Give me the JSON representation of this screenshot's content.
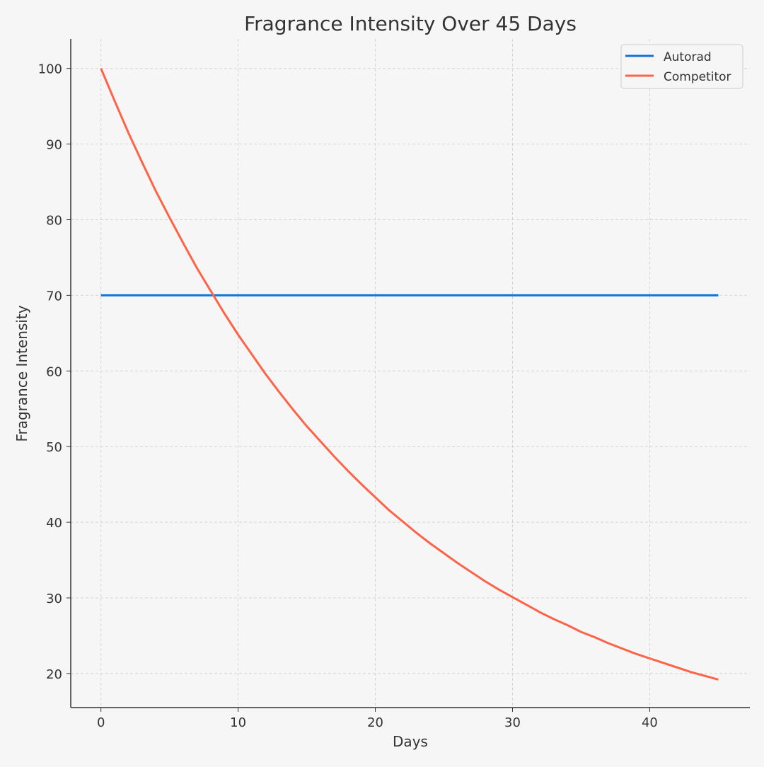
{
  "chart_data": {
    "type": "line",
    "title": "Fragrance Intensity Over 45 Days",
    "xlabel": "Days",
    "ylabel": "Fragrance Intensity",
    "xlim": [
      -2.2,
      47.3
    ],
    "ylim": [
      15.5,
      103.9
    ],
    "xticks": [
      0,
      10,
      20,
      30,
      40
    ],
    "yticks": [
      20,
      30,
      40,
      50,
      60,
      70,
      80,
      90,
      100
    ],
    "grid": true,
    "legend_position": "top-right",
    "x": [
      0,
      1,
      2,
      3,
      4,
      5,
      6,
      7,
      8,
      9,
      10,
      11,
      12,
      13,
      14,
      15,
      16,
      17,
      18,
      19,
      20,
      21,
      22,
      23,
      24,
      25,
      26,
      27,
      28,
      29,
      30,
      31,
      32,
      33,
      34,
      35,
      36,
      37,
      38,
      39,
      40,
      41,
      42,
      43,
      44,
      45
    ],
    "series": [
      {
        "name": "Autorad",
        "color": "#0b74de",
        "values": [
          70,
          70,
          70,
          70,
          70,
          70,
          70,
          70,
          70,
          70,
          70,
          70,
          70,
          70,
          70,
          70,
          70,
          70,
          70,
          70,
          70,
          70,
          70,
          70,
          70,
          70,
          70,
          70,
          70,
          70,
          70,
          70,
          70,
          70,
          70,
          70,
          70,
          70,
          70,
          70,
          70,
          70,
          70,
          70,
          70,
          70
        ]
      },
      {
        "name": "Competitor",
        "color": "#ff6347",
        "values": [
          100,
          95.7,
          91.5,
          87.6,
          83.8,
          80.3,
          76.9,
          73.6,
          70.6,
          67.6,
          64.8,
          62.2,
          59.6,
          57.2,
          54.9,
          52.7,
          50.7,
          48.7,
          46.8,
          45.0,
          43.3,
          41.6,
          40.1,
          38.6,
          37.2,
          35.9,
          34.6,
          33.4,
          32.2,
          31.1,
          30.1,
          29.1,
          28.1,
          27.2,
          26.4,
          25.5,
          24.8,
          24.0,
          23.3,
          22.6,
          22.0,
          21.4,
          20.8,
          20.2,
          19.7,
          19.2
        ]
      }
    ]
  }
}
